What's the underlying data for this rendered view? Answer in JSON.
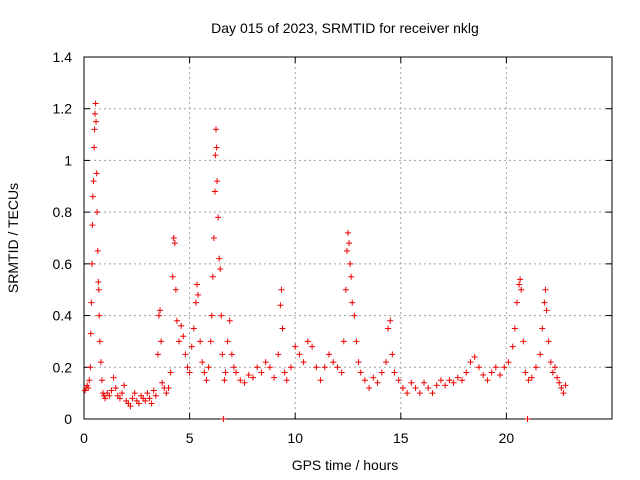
{
  "chart_data": {
    "type": "scatter",
    "title": "Day 015 of 2023, SRMTID for receiver nklg",
    "xlabel": "GPS time / hours",
    "ylabel": "SRMTID / TECUs",
    "xlim": [
      0,
      25
    ],
    "ylim": [
      0,
      1.4
    ],
    "xticks": [
      0,
      5,
      10,
      15,
      20
    ],
    "xtick_labels": [
      "0",
      "5",
      "10",
      "15",
      "20"
    ],
    "yticks": [
      0,
      0.2,
      0.4,
      0.6,
      0.8,
      1.0,
      1.2,
      1.4
    ],
    "ytick_labels": [
      "0",
      "0.2",
      "0.4",
      "0.6",
      "0.8",
      "1",
      "1.2",
      "1.4"
    ],
    "grid": true,
    "marker": "+",
    "series": [
      {
        "name": "SRMTID",
        "color": "#ee0000",
        "points": [
          [
            0.05,
            0.11
          ],
          [
            0.1,
            0.12
          ],
          [
            0.15,
            0.13
          ],
          [
            0.2,
            0.12
          ],
          [
            0.25,
            0.15
          ],
          [
            0.3,
            0.2
          ],
          [
            0.32,
            0.33
          ],
          [
            0.35,
            0.45
          ],
          [
            0.38,
            0.6
          ],
          [
            0.4,
            0.75
          ],
          [
            0.42,
            0.86
          ],
          [
            0.45,
            0.92
          ],
          [
            0.48,
            1.05
          ],
          [
            0.5,
            1.12
          ],
          [
            0.52,
            1.18
          ],
          [
            0.55,
            1.22
          ],
          [
            0.57,
            1.15
          ],
          [
            0.6,
            0.95
          ],
          [
            0.62,
            0.8
          ],
          [
            0.65,
            0.65
          ],
          [
            0.68,
            0.53
          ],
          [
            0.7,
            0.5
          ],
          [
            0.72,
            0.4
          ],
          [
            0.75,
            0.3
          ],
          [
            0.8,
            0.22
          ],
          [
            0.85,
            0.15
          ],
          [
            0.9,
            0.1
          ],
          [
            0.95,
            0.09
          ],
          [
            1.0,
            0.08
          ],
          [
            1.1,
            0.1
          ],
          [
            1.2,
            0.09
          ],
          [
            1.3,
            0.11
          ],
          [
            1.4,
            0.16
          ],
          [
            1.5,
            0.12
          ],
          [
            1.6,
            0.09
          ],
          [
            1.7,
            0.08
          ],
          [
            1.8,
            0.1
          ],
          [
            1.9,
            0.13
          ],
          [
            2.0,
            0.07
          ],
          [
            2.1,
            0.06
          ],
          [
            2.2,
            0.05
          ],
          [
            2.3,
            0.08
          ],
          [
            2.4,
            0.1
          ],
          [
            2.5,
            0.07
          ],
          [
            2.6,
            0.06
          ],
          [
            2.7,
            0.09
          ],
          [
            2.8,
            0.08
          ],
          [
            2.9,
            0.07
          ],
          [
            3.0,
            0.1
          ],
          [
            3.1,
            0.08
          ],
          [
            3.2,
            0.06
          ],
          [
            3.3,
            0.11
          ],
          [
            3.4,
            0.09
          ],
          [
            3.5,
            0.25
          ],
          [
            3.55,
            0.4
          ],
          [
            3.6,
            0.42
          ],
          [
            3.65,
            0.3
          ],
          [
            3.7,
            0.14
          ],
          [
            3.8,
            0.12
          ],
          [
            3.9,
            0.1
          ],
          [
            4.0,
            0.12
          ],
          [
            4.1,
            0.18
          ],
          [
            4.2,
            0.55
          ],
          [
            4.25,
            0.7
          ],
          [
            4.3,
            0.68
          ],
          [
            4.35,
            0.5
          ],
          [
            4.4,
            0.38
          ],
          [
            4.5,
            0.3
          ],
          [
            4.6,
            0.36
          ],
          [
            4.7,
            0.32
          ],
          [
            4.8,
            0.25
          ],
          [
            4.9,
            0.2
          ],
          [
            5.0,
            0.18
          ],
          [
            5.1,
            0.28
          ],
          [
            5.2,
            0.35
          ],
          [
            5.3,
            0.45
          ],
          [
            5.35,
            0.52
          ],
          [
            5.4,
            0.48
          ],
          [
            5.5,
            0.3
          ],
          [
            5.6,
            0.22
          ],
          [
            5.7,
            0.18
          ],
          [
            5.8,
            0.15
          ],
          [
            5.9,
            0.2
          ],
          [
            6.0,
            0.3
          ],
          [
            6.05,
            0.4
          ],
          [
            6.1,
            0.55
          ],
          [
            6.15,
            0.7
          ],
          [
            6.2,
            0.88
          ],
          [
            6.22,
            1.02
          ],
          [
            6.25,
            1.12
          ],
          [
            6.28,
            1.05
          ],
          [
            6.3,
            0.92
          ],
          [
            6.35,
            0.78
          ],
          [
            6.4,
            0.62
          ],
          [
            6.45,
            0.58
          ],
          [
            6.5,
            0.4
          ],
          [
            6.55,
            0.25
          ],
          [
            6.6,
            0.0
          ],
          [
            6.65,
            0.15
          ],
          [
            6.7,
            0.18
          ],
          [
            6.8,
            0.3
          ],
          [
            6.9,
            0.38
          ],
          [
            7.0,
            0.25
          ],
          [
            7.1,
            0.2
          ],
          [
            7.2,
            0.18
          ],
          [
            7.4,
            0.15
          ],
          [
            7.6,
            0.14
          ],
          [
            7.8,
            0.17
          ],
          [
            8.0,
            0.16
          ],
          [
            8.2,
            0.2
          ],
          [
            8.4,
            0.18
          ],
          [
            8.6,
            0.22
          ],
          [
            8.8,
            0.2
          ],
          [
            9.0,
            0.16
          ],
          [
            9.2,
            0.25
          ],
          [
            9.3,
            0.44
          ],
          [
            9.35,
            0.5
          ],
          [
            9.4,
            0.35
          ],
          [
            9.5,
            0.18
          ],
          [
            9.6,
            0.15
          ],
          [
            9.8,
            0.2
          ],
          [
            10.0,
            0.28
          ],
          [
            10.2,
            0.25
          ],
          [
            10.4,
            0.22
          ],
          [
            10.6,
            0.3
          ],
          [
            10.8,
            0.28
          ],
          [
            11.0,
            0.2
          ],
          [
            11.2,
            0.15
          ],
          [
            11.4,
            0.2
          ],
          [
            11.6,
            0.25
          ],
          [
            11.8,
            0.22
          ],
          [
            12.0,
            0.2
          ],
          [
            12.2,
            0.18
          ],
          [
            12.3,
            0.3
          ],
          [
            12.4,
            0.5
          ],
          [
            12.45,
            0.65
          ],
          [
            12.5,
            0.72
          ],
          [
            12.55,
            0.68
          ],
          [
            12.6,
            0.6
          ],
          [
            12.65,
            0.55
          ],
          [
            12.7,
            0.45
          ],
          [
            12.8,
            0.4
          ],
          [
            12.9,
            0.3
          ],
          [
            13.0,
            0.22
          ],
          [
            13.1,
            0.18
          ],
          [
            13.3,
            0.15
          ],
          [
            13.5,
            0.12
          ],
          [
            13.7,
            0.16
          ],
          [
            13.9,
            0.14
          ],
          [
            14.1,
            0.18
          ],
          [
            14.3,
            0.22
          ],
          [
            14.4,
            0.35
          ],
          [
            14.5,
            0.38
          ],
          [
            14.6,
            0.25
          ],
          [
            14.7,
            0.18
          ],
          [
            14.9,
            0.15
          ],
          [
            15.1,
            0.12
          ],
          [
            15.3,
            0.1
          ],
          [
            15.5,
            0.14
          ],
          [
            15.7,
            0.12
          ],
          [
            15.9,
            0.1
          ],
          [
            16.1,
            0.14
          ],
          [
            16.3,
            0.12
          ],
          [
            16.5,
            0.1
          ],
          [
            16.7,
            0.13
          ],
          [
            16.9,
            0.15
          ],
          [
            17.1,
            0.13
          ],
          [
            17.3,
            0.15
          ],
          [
            17.5,
            0.14
          ],
          [
            17.7,
            0.16
          ],
          [
            17.9,
            0.15
          ],
          [
            18.1,
            0.18
          ],
          [
            18.3,
            0.22
          ],
          [
            18.5,
            0.24
          ],
          [
            18.7,
            0.2
          ],
          [
            18.9,
            0.17
          ],
          [
            19.1,
            0.15
          ],
          [
            19.3,
            0.18
          ],
          [
            19.5,
            0.2
          ],
          [
            19.7,
            0.17
          ],
          [
            19.9,
            0.2
          ],
          [
            20.1,
            0.22
          ],
          [
            20.3,
            0.28
          ],
          [
            20.4,
            0.35
          ],
          [
            20.5,
            0.45
          ],
          [
            20.6,
            0.52
          ],
          [
            20.65,
            0.54
          ],
          [
            20.7,
            0.5
          ],
          [
            20.8,
            0.3
          ],
          [
            20.9,
            0.18
          ],
          [
            21.0,
            0.0
          ],
          [
            21.05,
            0.15
          ],
          [
            21.2,
            0.16
          ],
          [
            21.4,
            0.2
          ],
          [
            21.6,
            0.25
          ],
          [
            21.7,
            0.35
          ],
          [
            21.8,
            0.45
          ],
          [
            21.85,
            0.5
          ],
          [
            21.9,
            0.42
          ],
          [
            22.0,
            0.3
          ],
          [
            22.1,
            0.22
          ],
          [
            22.2,
            0.18
          ],
          [
            22.3,
            0.2
          ],
          [
            22.4,
            0.16
          ],
          [
            22.5,
            0.14
          ],
          [
            22.6,
            0.12
          ],
          [
            22.7,
            0.1
          ],
          [
            22.8,
            0.13
          ]
        ]
      }
    ]
  }
}
